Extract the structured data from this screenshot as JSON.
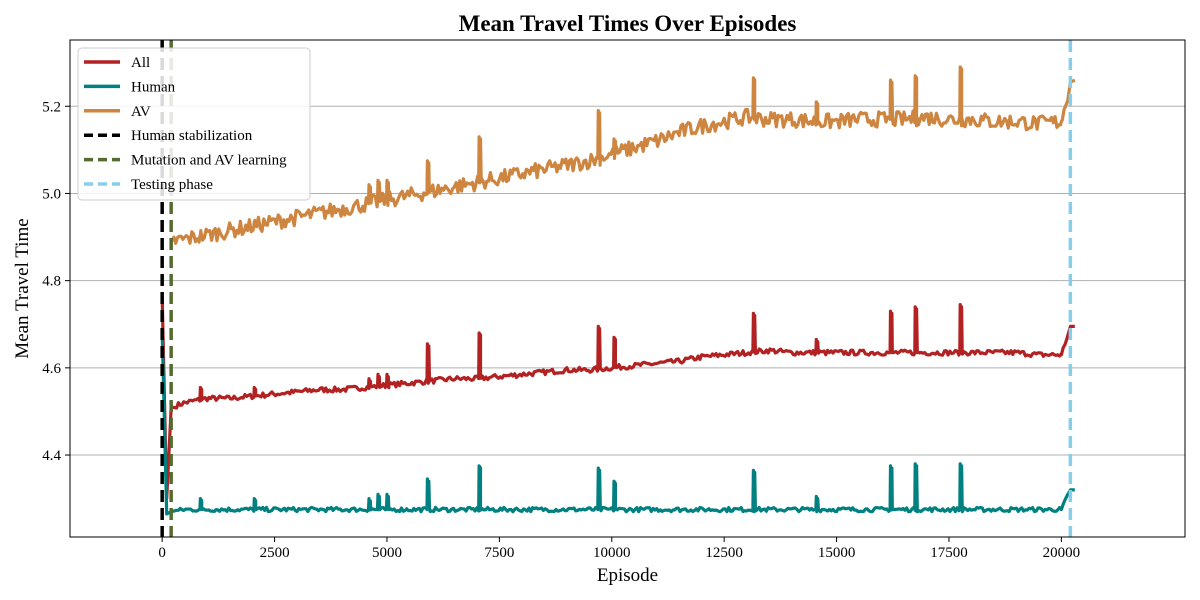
{
  "chart_data": {
    "type": "line",
    "title": "Mean Travel Times Over Episodes",
    "xlabel": "Episode",
    "ylabel": "Mean Travel Time",
    "xlim": [
      -2050,
      22750
    ],
    "ylim": [
      4.212,
      5.352
    ],
    "xticks": [
      0,
      2500,
      5000,
      7500,
      10000,
      12500,
      15000,
      17500,
      20000
    ],
    "yticks": [
      4.4,
      4.6,
      4.8,
      5.0,
      5.2
    ],
    "xtick_labels": [
      "0",
      "2500",
      "5000",
      "7500",
      "10000",
      "12500",
      "15000",
      "17500",
      "20000"
    ],
    "ytick_labels": [
      "4.4",
      "4.6",
      "4.8",
      "5.0",
      "5.2"
    ],
    "grid": "horizontal",
    "legend_position": "top-left",
    "series": [
      {
        "name": "All",
        "color": "#b22222",
        "x": [
          0,
          100,
          200,
          500,
          1000,
          1500,
          2000,
          2500,
          3000,
          3500,
          4000,
          4500,
          5000,
          5500,
          6000,
          6500,
          7000,
          7500,
          8000,
          8500,
          9000,
          9500,
          10000,
          10500,
          11000,
          11500,
          12000,
          12500,
          13000,
          13500,
          14000,
          14500,
          15000,
          15500,
          16000,
          16500,
          17000,
          17500,
          18000,
          18500,
          19000,
          19500,
          20000,
          20200,
          20300
        ],
        "values": [
          4.76,
          4.3,
          4.51,
          4.52,
          4.53,
          4.53,
          4.535,
          4.54,
          4.545,
          4.55,
          4.55,
          4.555,
          4.56,
          4.565,
          4.57,
          4.575,
          4.575,
          4.58,
          4.585,
          4.59,
          4.595,
          4.595,
          4.6,
          4.605,
          4.61,
          4.615,
          4.625,
          4.63,
          4.635,
          4.64,
          4.635,
          4.635,
          4.635,
          4.635,
          4.635,
          4.635,
          4.635,
          4.635,
          4.635,
          4.635,
          4.635,
          4.63,
          4.63,
          4.695,
          4.695
        ]
      },
      {
        "name": "Human",
        "color": "#008080",
        "x": [
          0,
          100,
          200,
          500,
          1000,
          1500,
          2000,
          2500,
          3000,
          3500,
          4000,
          4500,
          5000,
          5500,
          6000,
          6500,
          7000,
          7500,
          8000,
          8500,
          9000,
          9500,
          10000,
          10500,
          11000,
          11500,
          12000,
          12500,
          13000,
          13500,
          14000,
          14500,
          15000,
          15500,
          16000,
          16500,
          17000,
          17500,
          18000,
          18500,
          19000,
          19500,
          20000,
          20200,
          20300
        ],
        "values": [
          4.68,
          4.265,
          4.27,
          4.275,
          4.275,
          4.275,
          4.275,
          4.275,
          4.275,
          4.275,
          4.275,
          4.275,
          4.275,
          4.275,
          4.275,
          4.275,
          4.275,
          4.275,
          4.275,
          4.275,
          4.275,
          4.275,
          4.275,
          4.275,
          4.275,
          4.275,
          4.275,
          4.275,
          4.275,
          4.275,
          4.275,
          4.275,
          4.275,
          4.275,
          4.275,
          4.275,
          4.275,
          4.275,
          4.275,
          4.275,
          4.275,
          4.275,
          4.275,
          4.32,
          4.32
        ]
      },
      {
        "name": "AV",
        "color": "#cd853f",
        "x": [
          200,
          500,
          1000,
          1500,
          2000,
          2500,
          3000,
          3500,
          4000,
          4500,
          5000,
          5500,
          6000,
          6500,
          7000,
          7500,
          8000,
          8500,
          9000,
          9500,
          10000,
          10500,
          11000,
          11500,
          12000,
          12500,
          13000,
          13500,
          14000,
          14500,
          15000,
          15500,
          16000,
          16500,
          17000,
          17500,
          18000,
          18500,
          19000,
          19500,
          20000,
          20200,
          20300
        ],
        "values": [
          4.89,
          4.895,
          4.905,
          4.915,
          4.925,
          4.935,
          4.945,
          4.955,
          4.965,
          4.975,
          4.985,
          4.995,
          5.005,
          5.015,
          5.025,
          5.035,
          5.045,
          5.055,
          5.065,
          5.075,
          5.09,
          5.105,
          5.12,
          5.14,
          5.155,
          5.165,
          5.175,
          5.17,
          5.17,
          5.165,
          5.165,
          5.17,
          5.17,
          5.17,
          5.175,
          5.17,
          5.17,
          5.165,
          5.165,
          5.16,
          5.165,
          5.255,
          5.26
        ]
      },
      {
        "name": "Human stabilization",
        "color": "#000000",
        "style": "dashed",
        "vline": 0
      },
      {
        "name": "Mutation and AV learning",
        "color": "#556b2f",
        "style": "dashed",
        "vline": 200
      },
      {
        "name": "Testing phase",
        "color": "#87ceeb",
        "style": "dashed",
        "vline": 20200
      }
    ],
    "spikes": [
      {
        "x": 5900,
        "All": 4.655,
        "Human": 4.345,
        "AV": 5.075
      },
      {
        "x": 7050,
        "All": 4.68,
        "Human": 4.375,
        "AV": 5.13
      },
      {
        "x": 9700,
        "All": 4.695,
        "Human": 4.37,
        "AV": 5.19
      },
      {
        "x": 10050,
        "All": 4.67,
        "Human": 4.34,
        "AV": 5.125
      },
      {
        "x": 13150,
        "All": 4.725,
        "Human": 4.365,
        "AV": 5.265
      },
      {
        "x": 14550,
        "All": 4.665,
        "Human": 4.305,
        "AV": 5.21
      },
      {
        "x": 16200,
        "All": 4.73,
        "Human": 4.375,
        "AV": 5.26
      },
      {
        "x": 16750,
        "All": 4.74,
        "Human": 4.38,
        "AV": 5.27
      },
      {
        "x": 17750,
        "All": 4.745,
        "Human": 4.38,
        "AV": 5.29
      }
    ],
    "small_spikes": [
      {
        "x": 850,
        "All": 4.555,
        "Human": 4.3,
        "AV": 4.905
      },
      {
        "x": 2050,
        "All": 4.555,
        "Human": 4.3,
        "AV": 4.935
      },
      {
        "x": 4600,
        "All": 4.575,
        "Human": 4.3,
        "AV": 5.02
      },
      {
        "x": 4800,
        "All": 4.585,
        "Human": 4.31,
        "AV": 5.03
      },
      {
        "x": 5000,
        "All": 4.585,
        "Human": 4.31,
        "AV": 5.03
      }
    ]
  }
}
